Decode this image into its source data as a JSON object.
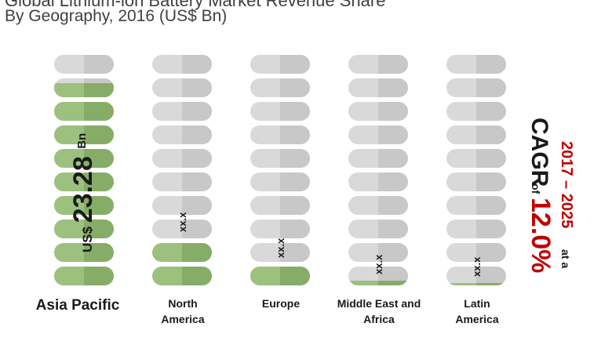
{
  "header": {
    "title": "Global Lithium-ion Battery Market Revenue Share",
    "subtitle": "By Geography, 2016 (US$ Bn)"
  },
  "chart_data": {
    "type": "bar",
    "title": "Global Lithium-ion Battery Market Revenue Share",
    "subtitle": "By Geography, 2016 (US$ Bn)",
    "ylabel": "US$ Bn",
    "categories": [
      {
        "lines": [
          "Asia Pacific"
        ],
        "bold_large": true
      },
      {
        "lines": [
          "North",
          "America"
        ]
      },
      {
        "lines": [
          "Europe"
        ]
      },
      {
        "lines": [
          "Middle East and",
          "Africa"
        ]
      },
      {
        "lines": [
          "Latin",
          "America"
        ]
      }
    ],
    "fill_levels": [
      0.88,
      0.22,
      0.11,
      0.04,
      0.03
    ],
    "capsules_per_column": 10,
    "data_labels": [
      {
        "prefix": "US$",
        "value": "23.28",
        "unit": "Bn"
      },
      {
        "value": "xx.x"
      },
      {
        "value": "xx.x"
      },
      {
        "value": "xx.x"
      },
      {
        "value": "xx.x"
      }
    ],
    "cagr": {
      "period": "2017 – 2025",
      "at": "at a",
      "label": "CAGR",
      "of": "of",
      "value": "12.0%"
    },
    "colors": {
      "empty_left": "#d9d9d9",
      "empty_right": "#c8c8c8",
      "fill_left": "#9cc17e",
      "fill_right": "#86ad68",
      "text": "#1a1a1a",
      "accent": "#c00000"
    }
  }
}
